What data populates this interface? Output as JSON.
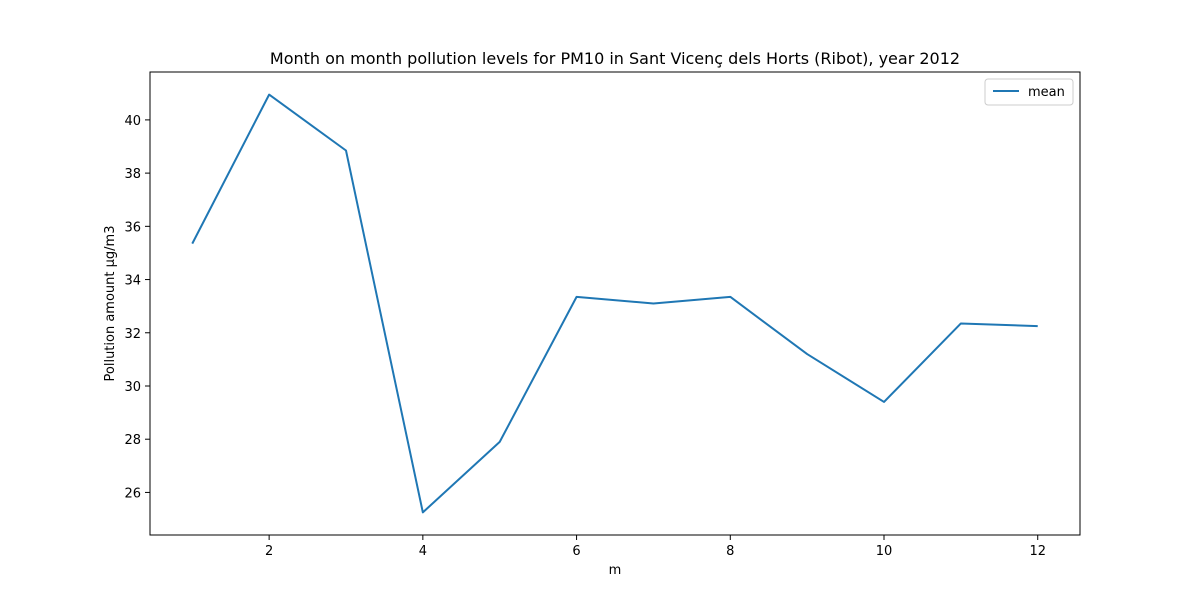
{
  "chart_data": {
    "type": "line",
    "title": "Month on month pollution levels for PM10 in Sant Vicenç dels Horts (Ribot), year 2012",
    "xlabel": "m",
    "ylabel": "Pollution amount µg/m3",
    "x": [
      1,
      2,
      3,
      4,
      5,
      6,
      7,
      8,
      9,
      10,
      11,
      12
    ],
    "series": [
      {
        "name": "mean",
        "color": "#1f77b4",
        "values": [
          35.35,
          40.95,
          38.85,
          25.25,
          27.9,
          33.35,
          33.1,
          33.35,
          31.2,
          29.4,
          32.35,
          32.25
        ]
      }
    ],
    "xlim": [
      0.45,
      12.55
    ],
    "ylim": [
      24.4,
      41.8
    ],
    "xticks": [
      "2",
      "4",
      "6",
      "8",
      "10",
      "12"
    ],
    "yticks": [
      "26",
      "28",
      "30",
      "32",
      "34",
      "36",
      "38",
      "40"
    ],
    "grid": false,
    "legend": "top-right"
  }
}
